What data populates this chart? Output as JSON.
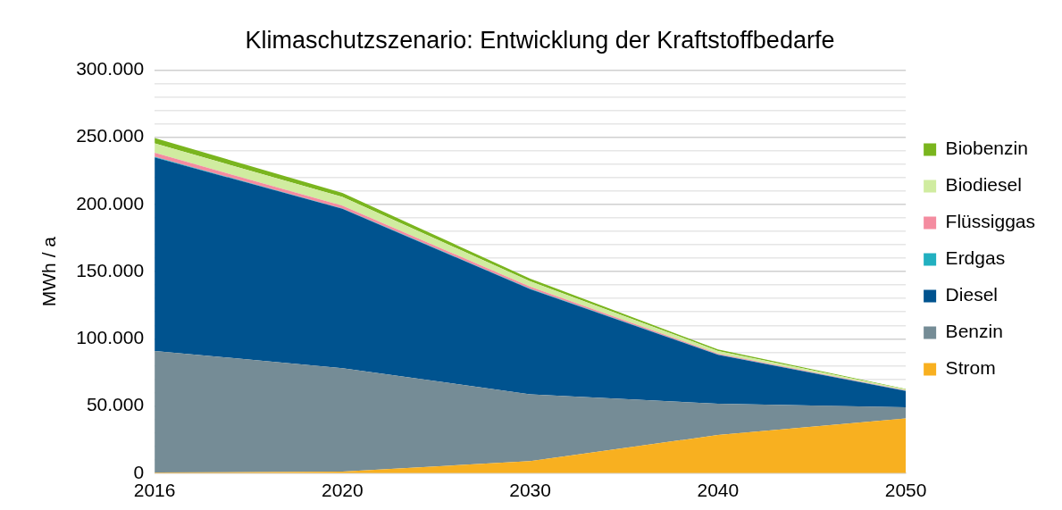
{
  "chart_data": {
    "type": "area",
    "title": "Klimaschutzszenario: Entwicklung der Kraftstoffbedarfe",
    "ylabel": "MWh / a",
    "categories": [
      "2016",
      "2020",
      "2030",
      "2040",
      "2050"
    ],
    "stacked": true,
    "series": [
      {
        "name": "Strom",
        "color": "#f8b020",
        "values": [
          500,
          1200,
          9000,
          28400,
          40800
        ]
      },
      {
        "name": "Benzin",
        "color": "#758c96",
        "values": [
          90500,
          77000,
          49700,
          23300,
          8200
        ]
      },
      {
        "name": "Diesel",
        "color": "#00538f",
        "values": [
          144000,
          118500,
          78300,
          36400,
          12200
        ]
      },
      {
        "name": "Erdgas",
        "color": "#22b0c0",
        "values": [
          400,
          300,
          300,
          200,
          100
        ]
      },
      {
        "name": "Flüssiggas",
        "color": "#f48ca0",
        "values": [
          3000,
          2000,
          1500,
          700,
          300
        ]
      },
      {
        "name": "Biodiesel",
        "color": "#d0eca0",
        "values": [
          7000,
          6500,
          4000,
          2000,
          700
        ]
      },
      {
        "name": "Biobenzin",
        "color": "#7ab51e",
        "values": [
          4000,
          3000,
          2000,
          1000,
          400
        ]
      }
    ],
    "ylim": [
      0,
      300000
    ],
    "yticks": [
      0,
      {
        "value": 10000,
        "label": null
      },
      {
        "value": 20000,
        "label": null
      },
      {
        "value": 30000,
        "label": null
      },
      {
        "value": 40000,
        "label": null
      },
      {
        "value": 50000,
        "label": "50.000"
      },
      {
        "value": 60000,
        "label": null
      },
      {
        "value": 70000,
        "label": null
      },
      {
        "value": 80000,
        "label": null
      },
      {
        "value": 90000,
        "label": null
      },
      {
        "value": 100000,
        "label": "100.000"
      },
      {
        "value": 110000,
        "label": null
      },
      {
        "value": 120000,
        "label": null
      },
      {
        "value": 130000,
        "label": null
      },
      {
        "value": 140000,
        "label": null
      },
      {
        "value": 150000,
        "label": "150.000"
      },
      {
        "value": 160000,
        "label": null
      },
      {
        "value": 170000,
        "label": null
      },
      {
        "value": 180000,
        "label": null
      },
      {
        "value": 190000,
        "label": null
      },
      {
        "value": 200000,
        "label": "200.000"
      },
      {
        "value": 210000,
        "label": null
      },
      {
        "value": 220000,
        "label": null
      },
      {
        "value": 230000,
        "label": null
      },
      {
        "value": 240000,
        "label": null
      },
      {
        "value": 250000,
        "label": "250.000"
      },
      {
        "value": 260000,
        "label": null
      },
      {
        "value": 270000,
        "label": null
      },
      {
        "value": 280000,
        "label": null
      },
      {
        "value": 290000,
        "label": null
      },
      {
        "value": 300000,
        "label": "300.000"
      }
    ],
    "grid": "y",
    "legend": "right",
    "marker": "none"
  }
}
